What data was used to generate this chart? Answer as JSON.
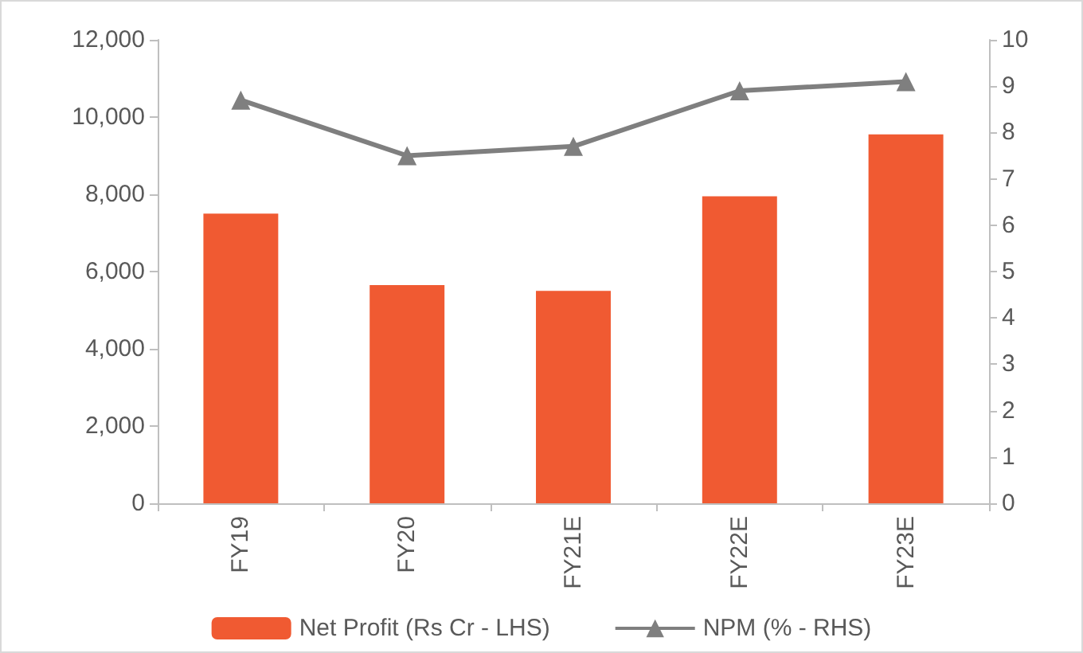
{
  "chart_data": {
    "type": "bar",
    "categories": [
      "FY19",
      "FY20",
      "FY21E",
      "FY22E",
      "FY23E"
    ],
    "series": [
      {
        "name": "Net Profit (Rs Cr - LHS)",
        "color": "#f05a32",
        "values": [
          7500,
          5650,
          5500,
          7950,
          9550
        ]
      },
      {
        "name": "NPM (% - RHS)",
        "type": "line",
        "axis": "y2",
        "color": "#7f7f7f",
        "values": [
          8.7,
          7.5,
          7.7,
          8.9,
          9.1
        ]
      }
    ],
    "ylim": [
      0,
      12000
    ],
    "yticks": [
      {
        "value": 0,
        "label": "0"
      },
      {
        "value": 2000,
        "label": "2,000"
      },
      {
        "value": 4000,
        "label": "4,000"
      },
      {
        "value": 6000,
        "label": "6,000"
      },
      {
        "value": 8000,
        "label": "8,000"
      },
      {
        "value": 10000,
        "label": "10,000"
      },
      {
        "value": 12000,
        "label": "12,000"
      }
    ],
    "y2lim": [
      0,
      10
    ],
    "y2ticks": [
      0,
      1,
      2,
      3,
      4,
      5,
      6,
      7,
      8,
      9,
      10
    ],
    "legend": "bottom",
    "marker": "triangle",
    "grid": false
  }
}
